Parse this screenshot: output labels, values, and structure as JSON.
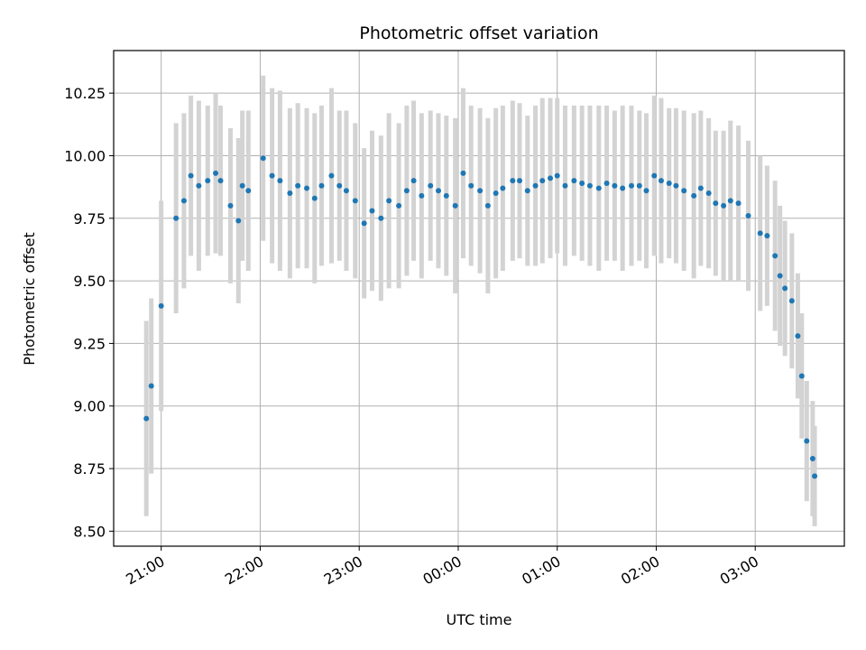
{
  "chart_data": {
    "type": "scatter",
    "title": "Photometric offset variation",
    "xlabel": "UTC time",
    "ylabel": "Photometric offset",
    "x_tick_labels": [
      "21:00",
      "22:00",
      "23:00",
      "00:00",
      "01:00",
      "02:00",
      "03:00"
    ],
    "x_tick_hours": [
      21,
      22,
      23,
      24,
      25,
      26,
      27
    ],
    "y_tick_labels": [
      "8.50",
      "8.75",
      "9.00",
      "9.25",
      "9.50",
      "9.75",
      "10.00",
      "10.25"
    ],
    "y_tick_values": [
      8.5,
      8.75,
      9.0,
      9.25,
      9.5,
      9.75,
      10.0,
      10.25
    ],
    "xlim_hours": [
      20.52,
      27.9
    ],
    "ylim": [
      8.44,
      10.42
    ],
    "grid": true,
    "colors": {
      "points": "#1f77b4",
      "errorbars": "#d3d3d3",
      "grid": "#b0b0b0",
      "axes": "#000000"
    },
    "series": [
      {
        "x_hours": [
          20.85,
          20.9,
          21.0,
          21.15,
          21.23,
          21.3,
          21.38,
          21.47,
          21.55,
          21.6,
          21.7,
          21.78,
          21.82,
          21.88,
          22.03,
          22.12,
          22.2,
          22.3,
          22.38,
          22.47,
          22.55,
          22.62,
          22.72,
          22.8,
          22.87,
          22.96,
          23.05,
          23.13,
          23.22,
          23.3,
          23.4,
          23.48,
          23.55,
          23.63,
          23.72,
          23.8,
          23.88,
          23.97,
          24.05,
          24.13,
          24.22,
          24.3,
          24.38,
          24.45,
          24.55,
          24.62,
          24.7,
          24.78,
          24.85,
          24.93,
          25.0,
          25.08,
          25.17,
          25.25,
          25.33,
          25.42,
          25.5,
          25.58,
          25.66,
          25.75,
          25.83,
          25.9,
          25.98,
          26.05,
          26.13,
          26.2,
          26.28,
          26.38,
          26.45,
          26.53,
          26.6,
          26.68,
          26.75,
          26.83,
          26.93,
          27.05,
          27.12,
          27.2,
          27.25,
          27.3,
          27.37,
          27.43,
          27.47,
          27.52,
          27.58,
          27.6
        ],
        "y": [
          8.95,
          9.08,
          9.4,
          9.75,
          9.82,
          9.92,
          9.88,
          9.9,
          9.93,
          9.9,
          9.8,
          9.74,
          9.88,
          9.86,
          9.99,
          9.92,
          9.9,
          9.85,
          9.88,
          9.87,
          9.83,
          9.88,
          9.92,
          9.88,
          9.86,
          9.82,
          9.73,
          9.78,
          9.75,
          9.82,
          9.8,
          9.86,
          9.9,
          9.84,
          9.88,
          9.86,
          9.84,
          9.8,
          9.93,
          9.88,
          9.86,
          9.8,
          9.85,
          9.87,
          9.9,
          9.9,
          9.86,
          9.88,
          9.9,
          9.91,
          9.92,
          9.88,
          9.9,
          9.89,
          9.88,
          9.87,
          9.89,
          9.88,
          9.87,
          9.88,
          9.88,
          9.86,
          9.92,
          9.9,
          9.89,
          9.88,
          9.86,
          9.84,
          9.87,
          9.85,
          9.81,
          9.8,
          9.82,
          9.81,
          9.76,
          9.69,
          9.68,
          9.6,
          9.52,
          9.47,
          9.42,
          9.28,
          9.12,
          8.86,
          8.79,
          8.72
        ],
        "err": [
          0.39,
          0.35,
          0.42,
          0.38,
          0.35,
          0.32,
          0.34,
          0.3,
          0.32,
          0.3,
          0.31,
          0.33,
          0.3,
          0.32,
          0.33,
          0.35,
          0.36,
          0.34,
          0.33,
          0.32,
          0.34,
          0.32,
          0.35,
          0.3,
          0.32,
          0.31,
          0.3,
          0.32,
          0.33,
          0.35,
          0.33,
          0.34,
          0.32,
          0.33,
          0.3,
          0.31,
          0.32,
          0.35,
          0.34,
          0.32,
          0.33,
          0.35,
          0.34,
          0.33,
          0.32,
          0.31,
          0.3,
          0.32,
          0.33,
          0.32,
          0.31,
          0.32,
          0.3,
          0.31,
          0.32,
          0.33,
          0.31,
          0.3,
          0.33,
          0.32,
          0.3,
          0.31,
          0.32,
          0.33,
          0.3,
          0.31,
          0.32,
          0.33,
          0.31,
          0.3,
          0.29,
          0.3,
          0.32,
          0.31,
          0.3,
          0.31,
          0.28,
          0.3,
          0.28,
          0.27,
          0.27,
          0.25,
          0.25,
          0.24,
          0.23,
          0.2
        ]
      }
    ]
  }
}
